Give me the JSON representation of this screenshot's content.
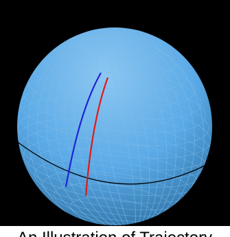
{
  "scene": {
    "background_color": "#000000",
    "sphere_color": "#5aa9e6",
    "sphere_highlight": "#8cc7f2",
    "sphere_shadow": "#2a6c9e",
    "grid_color": "#7fbce8",
    "equator_color": "#000000",
    "path_colors": {
      "blue": "#1f22d6",
      "red": "#e01818"
    }
  },
  "caption": {
    "text": "An Illustration of Trajectory"
  }
}
